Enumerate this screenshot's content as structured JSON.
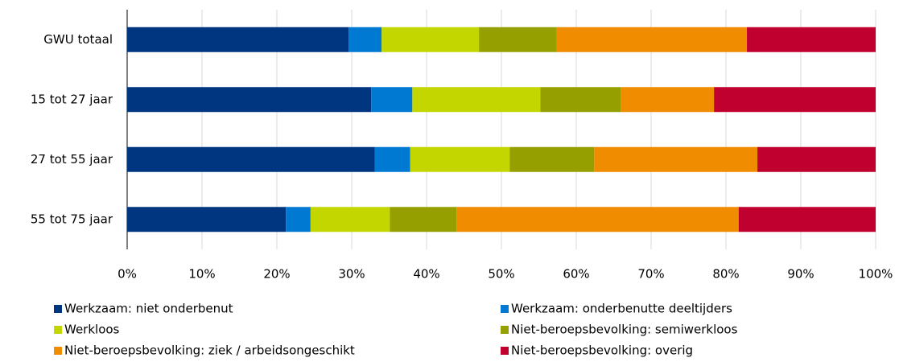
{
  "chart_data": {
    "type": "stacked_barh",
    "categories": [
      "GWU totaal",
      "15 tot 27 jaar",
      "27 tot 55 jaar",
      "55 tot 75 jaar"
    ],
    "series": [
      {
        "name": "Werkzaam: niet onderbenut",
        "color": "#003580",
        "values": [
          29.6,
          32.6,
          33.1,
          21.2
        ]
      },
      {
        "name": "Werkzaam: onderbenutte deeltijders",
        "color": "#0079d2",
        "values": [
          4.4,
          5.5,
          4.7,
          3.3
        ]
      },
      {
        "name": "Werkloos",
        "color": "#c3d600",
        "values": [
          13.0,
          17.1,
          13.3,
          10.6
        ]
      },
      {
        "name": "Niet-beroepsbevolking: semiwerkloos",
        "color": "#95a000",
        "values": [
          10.4,
          10.8,
          11.3,
          8.9
        ]
      },
      {
        "name": "Niet-beroepsbevolking: ziek / arbeidsongeschikt",
        "color": "#ef8c00",
        "values": [
          25.4,
          12.4,
          21.8,
          37.7
        ]
      },
      {
        "name": "Niet-beroepsbevolking: overig",
        "color": "#c0002e",
        "values": [
          17.2,
          21.6,
          15.8,
          18.3
        ]
      }
    ],
    "xlim": [
      0,
      100
    ],
    "xticks": [
      {
        "value": 0,
        "label": "0%"
      },
      {
        "value": 10,
        "label": "10%"
      },
      {
        "value": 20,
        "label": "20%"
      },
      {
        "value": 30,
        "label": "30%"
      },
      {
        "value": 40,
        "label": "40%"
      },
      {
        "value": 50,
        "label": "50%"
      },
      {
        "value": 60,
        "label": "60%"
      },
      {
        "value": 70,
        "label": "70%"
      },
      {
        "value": 80,
        "label": "80%"
      },
      {
        "value": 90,
        "label": "90%"
      },
      {
        "value": 100,
        "label": "100%"
      }
    ],
    "grid": true,
    "legend": "bottom"
  }
}
